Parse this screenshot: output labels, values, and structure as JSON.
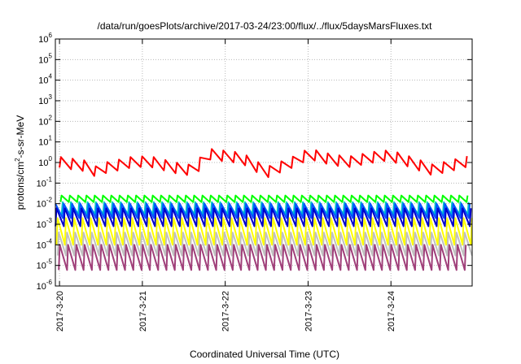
{
  "chart_data": {
    "type": "line",
    "title": "/data/run/goesPlots/archive/2017-03-24/23:00/flux/../flux/5daysMarsFluxes.txt",
    "xlabel": "Coordinated Universal Time (UTC)",
    "ylabel": {
      "prefix": "protons/cm",
      "sup": "2",
      "suffix": "-s-sr-MeV"
    },
    "x_tick_labels": [
      "2017-3-20",
      "2017-3-21",
      "2017-3-22",
      "2017-3-23",
      "2017-3-24"
    ],
    "x_tick_days": [
      0,
      1,
      2,
      3,
      4
    ],
    "xlim_days": [
      -0.05,
      4.98
    ],
    "y_scale": "log",
    "y_tick_exponents": [
      -6,
      -5,
      -4,
      -3,
      -2,
      -1,
      0,
      1,
      2,
      3,
      4,
      5,
      6
    ],
    "y_tick_base": "10",
    "ylim": [
      1e-06,
      1000000.0
    ],
    "grid": true,
    "legend": "none",
    "series": [
      {
        "color": "#ff0000",
        "pattern": "sawtooth",
        "period_days": 0.14,
        "low": 0.6,
        "high": 2.0,
        "envelope_days": [
          -0.05,
          0.35,
          0.45,
          0.55,
          0.9,
          1.1,
          1.4,
          1.65,
          1.75,
          2.2,
          2.5,
          2.9,
          3.0,
          3.3,
          3.5,
          3.9,
          4.1,
          4.5,
          4.7,
          4.98
        ],
        "envelope_scale": [
          1.0,
          0.6,
          0.3,
          0.5,
          1.0,
          1.0,
          0.5,
          0.35,
          2.5,
          1.5,
          0.3,
          1.3,
          2.5,
          1.2,
          1.0,
          2.0,
          1.5,
          0.4,
          0.6,
          1.2
        ]
      },
      {
        "color": "#00ff00",
        "pattern": "sawtooth",
        "period_days": 0.1,
        "low": 0.012,
        "high": 0.025
      },
      {
        "color": "#00c8c8",
        "pattern": "sawtooth",
        "period_days": 0.1,
        "low": 0.003,
        "high": 0.012
      },
      {
        "color": "#0055ff",
        "pattern": "sawtooth",
        "period_days": 0.1,
        "low": 0.002,
        "high": 0.01
      },
      {
        "color": "#0000cc",
        "pattern": "sawtooth",
        "period_days": 0.1,
        "low": 0.0008,
        "high": 0.006
      },
      {
        "color": "#ffff00",
        "pattern": "sawtooth",
        "period_days": 0.1,
        "low": 0.0001,
        "high": 0.002
      },
      {
        "color": "#c0c0c0",
        "pattern": "sawtooth",
        "period_days": 0.1,
        "low": 3e-05,
        "high": 0.0004
      },
      {
        "color": "#a0407a",
        "pattern": "sawtooth",
        "period_days": 0.1,
        "low": 6e-06,
        "high": 0.0001
      }
    ]
  }
}
